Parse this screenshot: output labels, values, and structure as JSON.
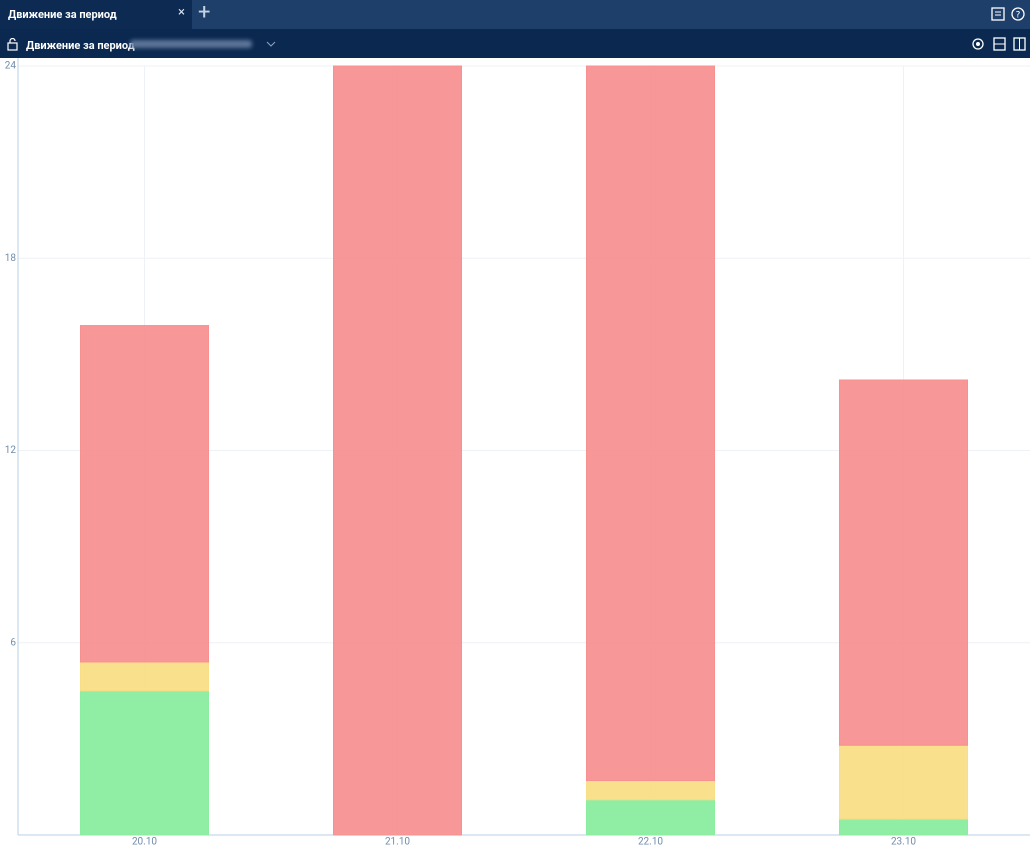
{
  "tab": {
    "title": "Движение за период"
  },
  "toolbar": {
    "title": "Движение за период"
  },
  "chart_data": {
    "type": "bar",
    "stacked": true,
    "categories": [
      "20.10",
      "21.10",
      "22.10",
      "23.10"
    ],
    "series": [
      {
        "color": "#9bf0ad",
        "values": [
          4.5,
          0,
          1.1,
          0.5
        ]
      },
      {
        "color": "#fde59a",
        "values": [
          0.9,
          0,
          0.6,
          2.3
        ]
      },
      {
        "color": "#ff9a9a",
        "values": [
          10.5,
          24,
          22.3,
          11.4
        ]
      }
    ],
    "ylim": [
      0,
      24
    ],
    "yticks": [
      6,
      12,
      18,
      24
    ],
    "grid": true
  }
}
